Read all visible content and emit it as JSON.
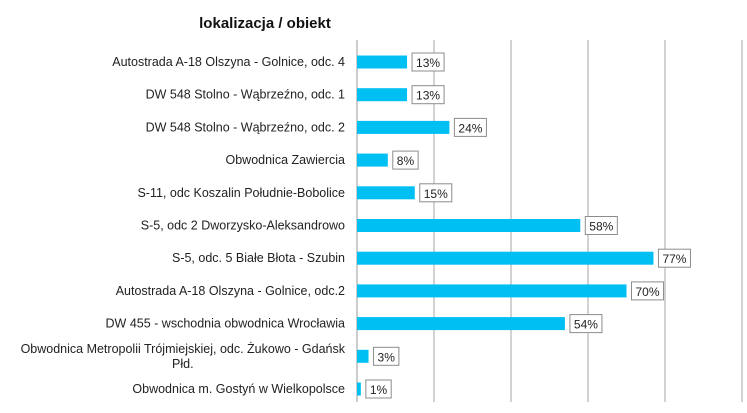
{
  "chart_data": {
    "type": "bar",
    "orientation": "horizontal",
    "title": "lokalizacja / obiekt",
    "categories": [
      "Autostrada A-18 Olszyna - Golnice, odc. 4",
      "DW 548 Stolno - Wąbrzeźno, odc. 1",
      "DW 548 Stolno - Wąbrzeźno, odc. 2",
      "Obwodnica Zawiercia",
      "S-11, odc Koszalin Południe-Bobolice",
      "S-5, odc 2 Dworzysko-Aleksandrowo",
      "S-5, odc. 5 Białe Błota - Szubin",
      "Autostrada A-18 Olszyna - Golnice, odc.2",
      "DW 455 - wschodnia obwodnica Wrocławia",
      "Obwodnica Metropolii Trójmiejskiej, odc. Żukowo - Gdańsk Płd.",
      "Obwodnica m. Gostyń w Wielkopolsce"
    ],
    "values": [
      13,
      13,
      24,
      8,
      15,
      58,
      77,
      70,
      54,
      3,
      1
    ],
    "value_labels": [
      "13%",
      "13%",
      "24%",
      "8%",
      "15%",
      "58%",
      "77%",
      "70%",
      "54%",
      "3%",
      "1%"
    ],
    "xlim": [
      0,
      100
    ],
    "unit": "%",
    "grid": "vertical",
    "bar_color": "#00bff3"
  }
}
